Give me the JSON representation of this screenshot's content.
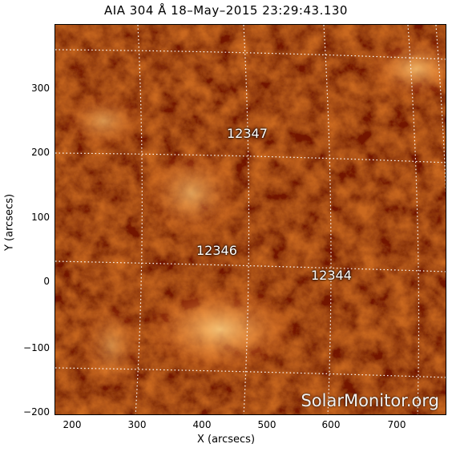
{
  "title": "AIA 304 Å 18–May–2015 23:29:43.130",
  "axes": {
    "xlabel": "X (arcsecs)",
    "ylabel": "Y (arcsecs)",
    "x_ticks": [
      "200",
      "300",
      "400",
      "500",
      "600",
      "700"
    ],
    "y_ticks": [
      "300",
      "200",
      "100",
      "0",
      "−100",
      "−200"
    ]
  },
  "regions": [
    {
      "id": "12347",
      "label": "12347"
    },
    {
      "id": "12346",
      "label": "12346"
    },
    {
      "id": "12344",
      "label": "12344"
    }
  ],
  "watermark": "SolarMonitor.org",
  "colors": {
    "sun_dark": "#2a0200",
    "sun_mid": "#a62200",
    "sun_bright": "#ff9a3c",
    "grid": "#ffffff"
  }
}
